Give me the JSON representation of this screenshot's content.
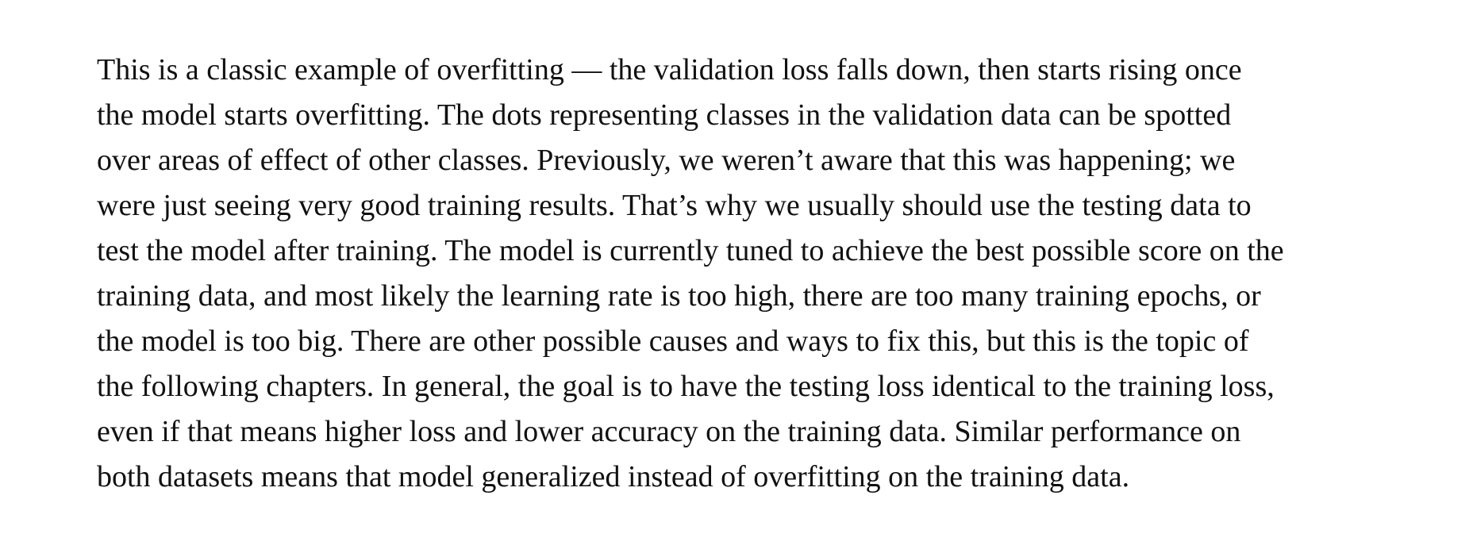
{
  "document": {
    "paragraph_lines": [
      "This is a classic example of overfitting — the validation loss falls down, then starts rising once",
      "the model starts overfitting. The dots representing classes in the validation data can be spotted",
      "over areas of effect of other classes. Previously, we weren’t aware that this was happening; we",
      "were just seeing very good training results. That’s why we usually should use the testing data to",
      "test the model after training. The model is currently tuned to achieve the best possible score on the",
      "training data, and most likely the learning rate is too high, there are too many training epochs, or",
      "the model is too big. There are other possible causes and ways to fix this, but this is the topic of",
      "the following chapters. In general, the goal is to have the testing loss identical to the training loss,",
      "even if that means higher loss and lower accuracy on the training data. Similar performance on",
      "both datasets means that model generalized instead of overfitting on the training data."
    ]
  }
}
